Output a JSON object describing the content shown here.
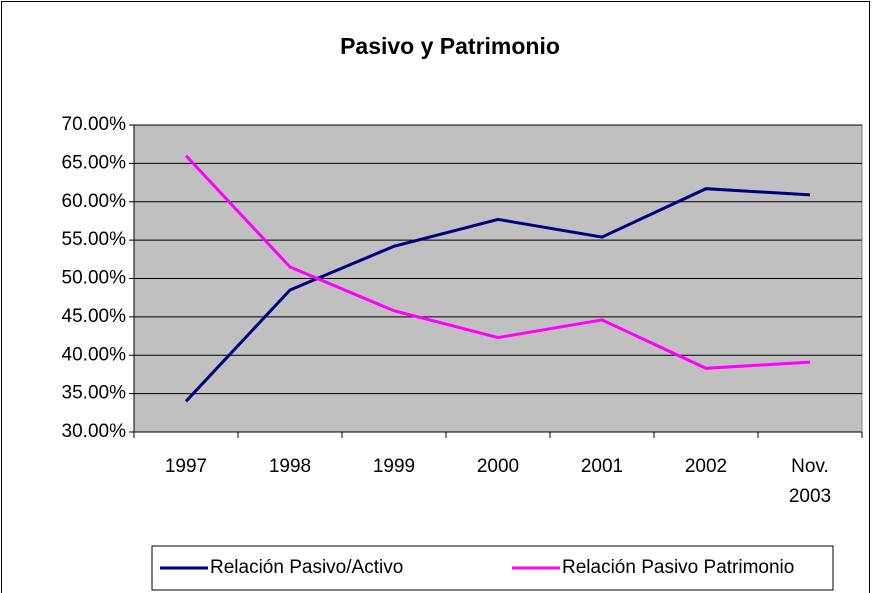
{
  "chart_data": {
    "type": "line",
    "title": "Pasivo y Patrimonio",
    "categories": [
      "1997",
      "1998",
      "1999",
      "2000",
      "2001",
      "2002",
      "Nov. 2003"
    ],
    "series": [
      {
        "name": "Relación Pasivo/Activo",
        "color": "#000080",
        "values": [
          34.0,
          48.5,
          54.2,
          57.7,
          55.4,
          61.7,
          60.9
        ]
      },
      {
        "name": "Relación Pasivo Patrimonio",
        "color": "#ff00ff",
        "values": [
          66.0,
          51.5,
          45.8,
          42.3,
          44.6,
          38.3,
          39.1
        ]
      }
    ],
    "ylim": [
      30,
      70
    ],
    "yticks": [
      {
        "value": 30,
        "label": "30.00%"
      },
      {
        "value": 35,
        "label": "35.00%"
      },
      {
        "value": 40,
        "label": "40.00%"
      },
      {
        "value": 45,
        "label": "45.00%"
      },
      {
        "value": 50,
        "label": "50.00%"
      },
      {
        "value": 55,
        "label": "55.00%"
      },
      {
        "value": 60,
        "label": "60.00%"
      },
      {
        "value": 65,
        "label": "65.00%"
      },
      {
        "value": 70,
        "label": "70.00%"
      }
    ],
    "grid": true,
    "legend": "bottom"
  }
}
